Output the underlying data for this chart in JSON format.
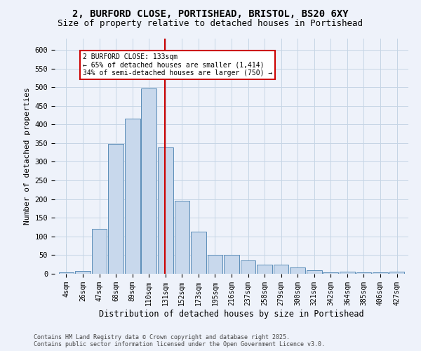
{
  "title_line1": "2, BURFORD CLOSE, PORTISHEAD, BRISTOL, BS20 6XY",
  "title_line2": "Size of property relative to detached houses in Portishead",
  "xlabel": "Distribution of detached houses by size in Portishead",
  "ylabel": "Number of detached properties",
  "categories": [
    "4sqm",
    "26sqm",
    "47sqm",
    "68sqm",
    "89sqm",
    "110sqm",
    "131sqm",
    "152sqm",
    "173sqm",
    "195sqm",
    "216sqm",
    "237sqm",
    "258sqm",
    "279sqm",
    "300sqm",
    "321sqm",
    "342sqm",
    "364sqm",
    "385sqm",
    "406sqm",
    "427sqm"
  ],
  "values": [
    4,
    8,
    120,
    348,
    415,
    497,
    338,
    195,
    113,
    50,
    50,
    36,
    25,
    25,
    17,
    10,
    3,
    5,
    3,
    4,
    5
  ],
  "bar_color": "#c8d8ec",
  "bar_edge_color": "#5b8db8",
  "grid_color": "#c5d5e5",
  "ref_line_color": "#cc0000",
  "annotation_text": "2 BURFORD CLOSE: 133sqm\n← 65% of detached houses are smaller (1,414)\n34% of semi-detached houses are larger (750) →",
  "annotation_box_color": "#cc0000",
  "annotation_box_bg": "#ffffff",
  "ylim": [
    0,
    630
  ],
  "yticks": [
    0,
    50,
    100,
    150,
    200,
    250,
    300,
    350,
    400,
    450,
    500,
    550,
    600
  ],
  "footer_line1": "Contains HM Land Registry data © Crown copyright and database right 2025.",
  "footer_line2": "Contains public sector information licensed under the Open Government Licence v3.0.",
  "background_color": "#eef2fa",
  "title_fontsize": 10,
  "subtitle_fontsize": 9,
  "ylabel_fontsize": 8,
  "xlabel_fontsize": 8.5,
  "tick_fontsize": 7,
  "footer_fontsize": 6
}
